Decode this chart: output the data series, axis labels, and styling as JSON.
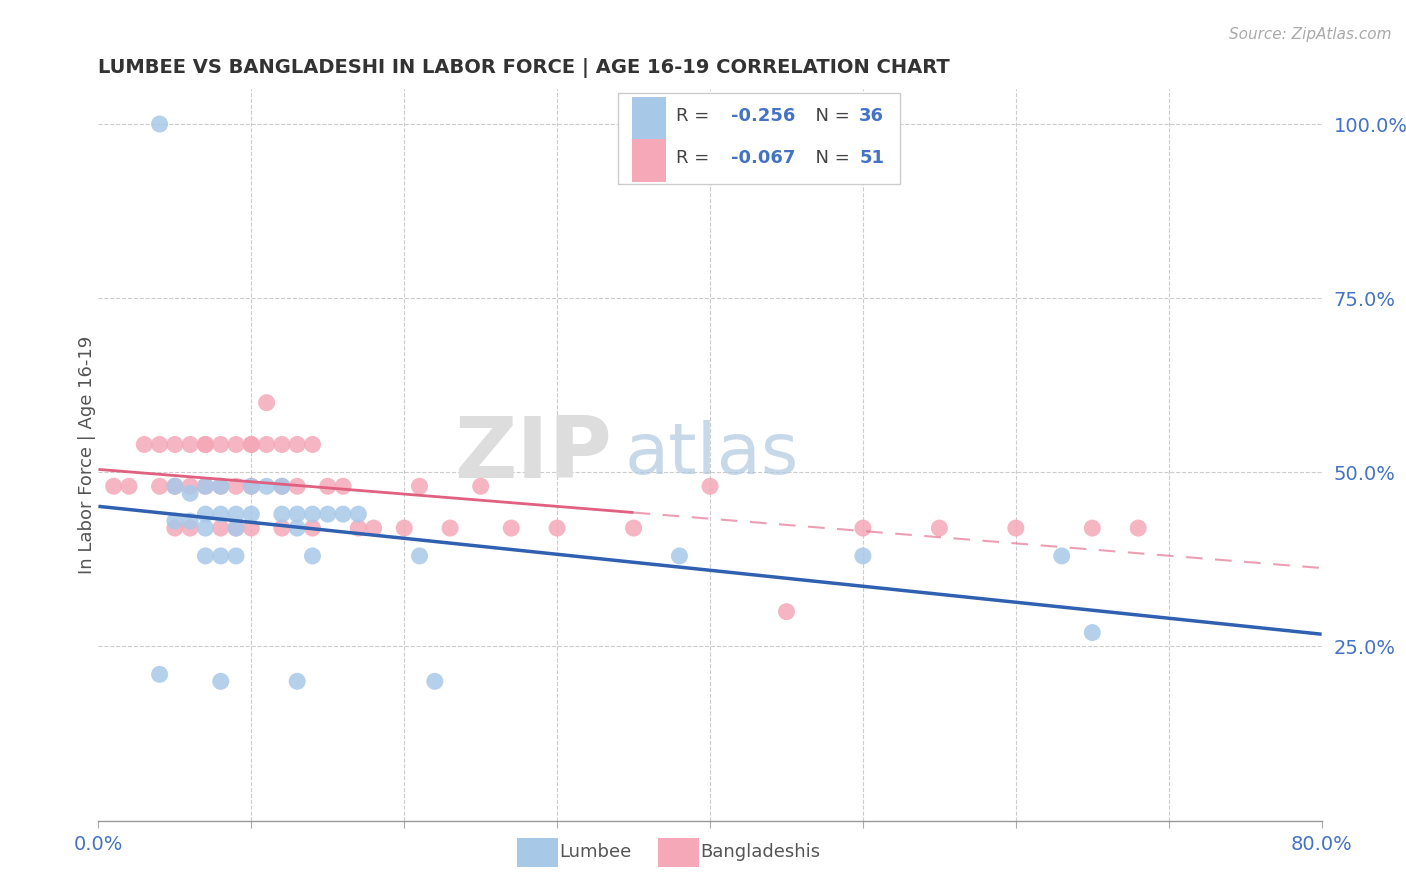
{
  "title": "LUMBEE VS BANGLADESHI IN LABOR FORCE | AGE 16-19 CORRELATION CHART",
  "source_text": "Source: ZipAtlas.com",
  "ylabel": "In Labor Force | Age 16-19",
  "xlim": [
    0.0,
    0.8
  ],
  "ylim": [
    0.0,
    1.05
  ],
  "xtick_positions": [
    0.0,
    0.1,
    0.2,
    0.3,
    0.4,
    0.5,
    0.6,
    0.7,
    0.8
  ],
  "xticklabels": [
    "0.0%",
    "",
    "",
    "",
    "",
    "",
    "",
    "",
    "80.0%"
  ],
  "yticks_right": [
    0.25,
    0.5,
    0.75,
    1.0
  ],
  "ytick_right_labels": [
    "25.0%",
    "50.0%",
    "75.0%",
    "100.0%"
  ],
  "lumbee_color": "#a8c8e8",
  "bangladeshi_color": "#f4a8b8",
  "lumbee_line_color": "#3060b0",
  "bangladeshi_line_color": "#e06080",
  "lumbee_R": -0.256,
  "lumbee_N": 36,
  "bangladeshi_R": -0.067,
  "bangladeshi_N": 51,
  "watermark_zip": "ZIP",
  "watermark_atlas": "atlas",
  "lumbee_x": [
    0.04,
    0.05,
    0.05,
    0.06,
    0.06,
    0.07,
    0.07,
    0.07,
    0.08,
    0.08,
    0.09,
    0.09,
    0.1,
    0.1,
    0.11,
    0.12,
    0.12,
    0.13,
    0.13,
    0.14,
    0.15,
    0.16,
    0.17,
    0.04,
    0.07,
    0.08,
    0.09,
    0.14,
    0.21,
    0.38,
    0.5,
    0.63,
    0.65,
    0.08,
    0.13,
    0.22
  ],
  "lumbee_y": [
    1.0,
    0.48,
    0.43,
    0.47,
    0.43,
    0.42,
    0.44,
    0.48,
    0.44,
    0.48,
    0.44,
    0.42,
    0.48,
    0.44,
    0.48,
    0.44,
    0.48,
    0.44,
    0.42,
    0.44,
    0.44,
    0.44,
    0.44,
    0.21,
    0.38,
    0.38,
    0.38,
    0.38,
    0.38,
    0.38,
    0.38,
    0.38,
    0.27,
    0.2,
    0.2,
    0.2
  ],
  "bangladeshi_x": [
    0.01,
    0.02,
    0.03,
    0.04,
    0.04,
    0.05,
    0.05,
    0.06,
    0.06,
    0.07,
    0.07,
    0.07,
    0.08,
    0.08,
    0.09,
    0.09,
    0.1,
    0.1,
    0.1,
    0.11,
    0.11,
    0.12,
    0.12,
    0.13,
    0.13,
    0.14,
    0.14,
    0.15,
    0.16,
    0.17,
    0.18,
    0.2,
    0.21,
    0.23,
    0.25,
    0.27,
    0.3,
    0.35,
    0.4,
    0.45,
    0.5,
    0.55,
    0.6,
    0.65,
    0.68,
    0.05,
    0.06,
    0.08,
    0.09,
    0.1,
    0.12
  ],
  "bangladeshi_y": [
    0.48,
    0.48,
    0.54,
    0.54,
    0.48,
    0.54,
    0.48,
    0.54,
    0.48,
    0.54,
    0.48,
    0.54,
    0.54,
    0.48,
    0.54,
    0.48,
    0.54,
    0.48,
    0.54,
    0.6,
    0.54,
    0.48,
    0.54,
    0.48,
    0.54,
    0.54,
    0.42,
    0.48,
    0.48,
    0.42,
    0.42,
    0.42,
    0.48,
    0.42,
    0.48,
    0.42,
    0.42,
    0.42,
    0.48,
    0.3,
    0.42,
    0.42,
    0.42,
    0.42,
    0.42,
    0.42,
    0.42,
    0.42,
    0.42,
    0.42,
    0.42
  ]
}
